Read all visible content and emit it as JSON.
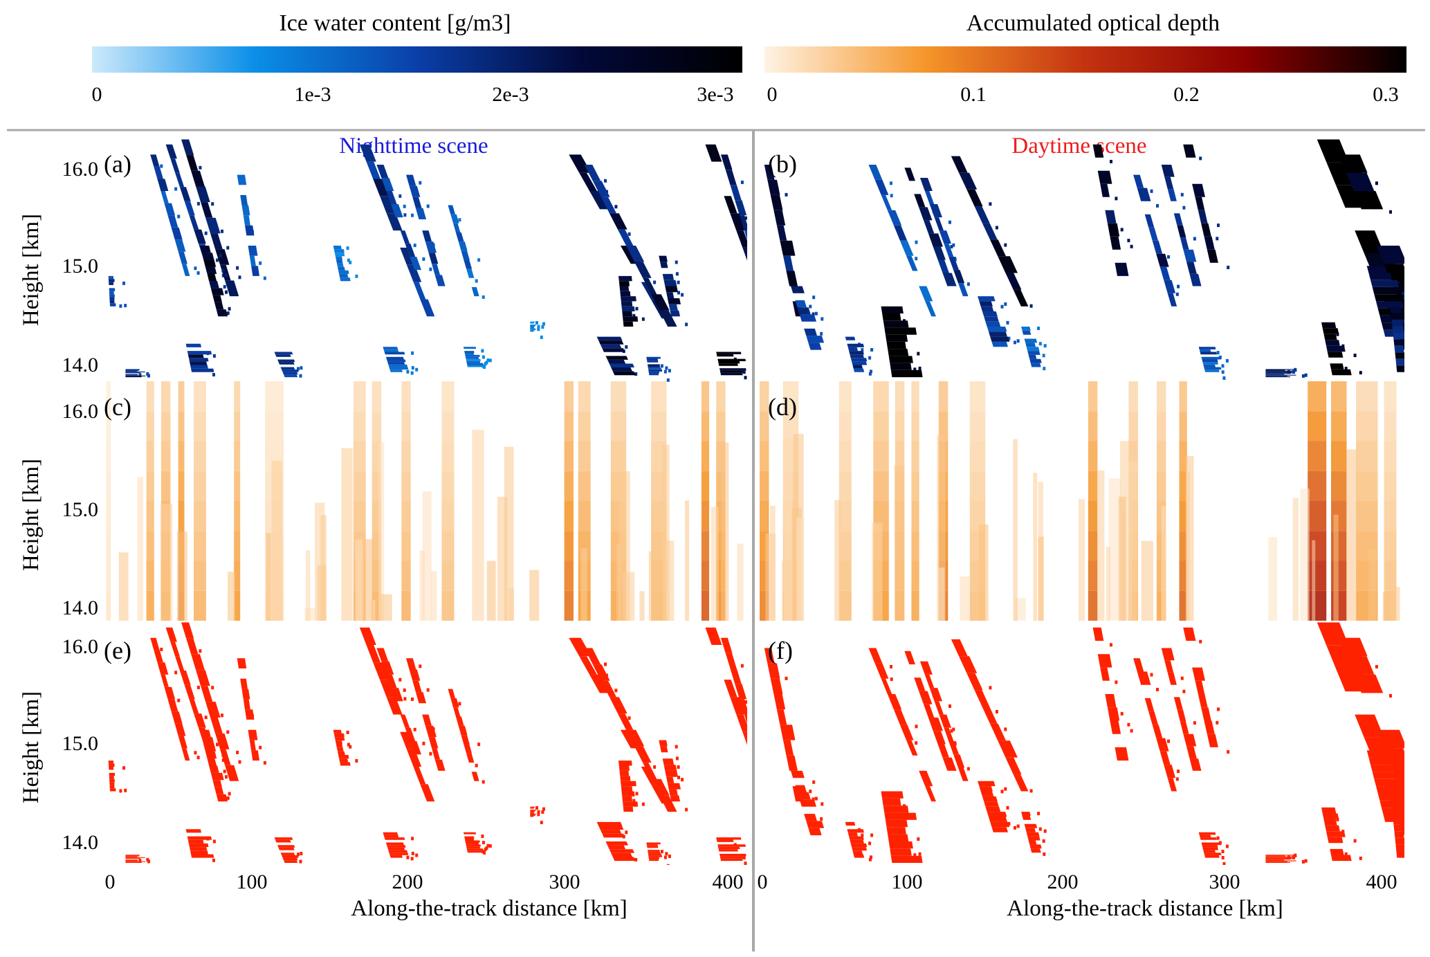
{
  "chart_data": {
    "type": "heatmap",
    "colorbars": [
      {
        "title": "Ice water content [g/m3]",
        "ticks": [
          "0",
          "1e-3",
          "2e-3",
          "3e-3"
        ],
        "range": [
          0,
          0.003
        ],
        "colors": [
          "#cde9fb",
          "#0a8fe8",
          "#0a3fa8",
          "#02093a",
          "#000000"
        ]
      },
      {
        "title": "Accumulated optical depth",
        "ticks": [
          "0",
          "0.1",
          "0.2",
          "0.3"
        ],
        "range": [
          0,
          0.3
        ],
        "colors": [
          "#fff3e4",
          "#f5962a",
          "#c43210",
          "#8c0000",
          "#000000"
        ]
      }
    ],
    "scene_labels": [
      "Nighttime scene",
      "Daytime scene"
    ],
    "ylabel": "Height [km]",
    "xlabel": "Along-the-track distance [km]",
    "y_ticks": [
      "14.0",
      "15.0",
      "16.0"
    ],
    "y_tick_values": [
      14.0,
      15.0,
      16.0
    ],
    "ylim": [
      13.88,
      16.26
    ],
    "x_ticks": [
      "0",
      "100",
      "200",
      "300",
      "400"
    ],
    "x_tick_values": [
      0,
      100,
      200,
      300,
      400
    ],
    "xlim": [
      0,
      415
    ],
    "panels": [
      {
        "label": "(a)",
        "row": 0,
        "col": 0,
        "kind": "ice"
      },
      {
        "label": "(b)",
        "row": 0,
        "col": 1,
        "kind": "ice"
      },
      {
        "label": "(c)",
        "row": 1,
        "col": 0,
        "kind": "optical"
      },
      {
        "label": "(d)",
        "row": 1,
        "col": 1,
        "kind": "optical"
      },
      {
        "label": "(e)",
        "row": 2,
        "col": 0,
        "kind": "mask"
      },
      {
        "label": "(f)",
        "row": 2,
        "col": 1,
        "kind": "mask"
      }
    ],
    "mask_color": "#ff2200",
    "streaks": [
      [
        {
          "x": 30,
          "ytop": 16.1,
          "ybot": 14.9,
          "slope": 28,
          "w": 4,
          "v": 0.0015
        },
        {
          "x": 40,
          "ytop": 16.2,
          "ybot": 14.8,
          "slope": 32,
          "w": 4,
          "v": 0.002
        },
        {
          "x": 50,
          "ytop": 16.25,
          "ybot": 14.7,
          "slope": 30,
          "w": 5,
          "v": 0.0022
        },
        {
          "x": 62,
          "ytop": 15.2,
          "ybot": 14.5,
          "slope": 25,
          "w": 6,
          "v": 0.0024
        },
        {
          "x": 86,
          "ytop": 15.9,
          "ybot": 14.9,
          "slope": 15,
          "w": 4,
          "v": 0.0014
        },
        {
          "x": 52,
          "ytop": 14.3,
          "ybot": 13.95,
          "slope": 20,
          "w": 12,
          "v": 0.002
        },
        {
          "x": 110,
          "ytop": 14.15,
          "ybot": 13.9,
          "slope": 40,
          "w": 10,
          "v": 0.0016
        },
        {
          "x": 3,
          "ytop": 14.9,
          "ybot": 14.6,
          "slope": 5,
          "w": 3,
          "v": 0.0016
        },
        {
          "x": 14,
          "ytop": 13.98,
          "ybot": 13.9,
          "slope": 0,
          "w": 10,
          "v": 0.0018
        },
        {
          "x": 148,
          "ytop": 15.2,
          "ybot": 14.85,
          "slope": 20,
          "w": 5,
          "v": 0.001
        },
        {
          "x": 165,
          "ytop": 16.2,
          "ybot": 14.5,
          "slope": 38,
          "w": 5,
          "v": 0.0018
        },
        {
          "x": 176,
          "ytop": 16.0,
          "ybot": 14.7,
          "slope": 35,
          "w": 4,
          "v": 0.0014
        },
        {
          "x": 195,
          "ytop": 15.9,
          "ybot": 14.8,
          "slope": 28,
          "w": 4,
          "v": 0.0015
        },
        {
          "x": 222,
          "ytop": 15.6,
          "ybot": 14.7,
          "slope": 28,
          "w": 4,
          "v": 0.0012
        },
        {
          "x": 180,
          "ytop": 14.2,
          "ybot": 13.95,
          "slope": 30,
          "w": 10,
          "v": 0.0012
        },
        {
          "x": 232,
          "ytop": 14.2,
          "ybot": 14.0,
          "slope": 20,
          "w": 8,
          "v": 0.001
        },
        {
          "x": 275,
          "ytop": 14.45,
          "ybot": 14.35,
          "slope": 0,
          "w": 3,
          "v": 0.001
        },
        {
          "x": 300,
          "ytop": 16.1,
          "ybot": 14.3,
          "slope": 55,
          "w": 6,
          "v": 0.0024
        },
        {
          "x": 310,
          "ytop": 16.0,
          "ybot": 14.4,
          "slope": 50,
          "w": 5,
          "v": 0.002
        },
        {
          "x": 332,
          "ytop": 14.9,
          "ybot": 14.4,
          "slope": 10,
          "w": 8,
          "v": 0.0024
        },
        {
          "x": 318,
          "ytop": 14.3,
          "ybot": 13.92,
          "slope": 45,
          "w": 14,
          "v": 0.0022
        },
        {
          "x": 358,
          "ytop": 15.1,
          "ybot": 14.5,
          "slope": 20,
          "w": 6,
          "v": 0.002
        },
        {
          "x": 388,
          "ytop": 16.2,
          "ybot": 14.5,
          "slope": 35,
          "w": 6,
          "v": 0.0024
        },
        {
          "x": 398,
          "ytop": 16.1,
          "ybot": 14.6,
          "slope": 30,
          "w": 4,
          "v": 0.0018
        },
        {
          "x": 395,
          "ytop": 14.15,
          "ybot": 13.92,
          "slope": 20,
          "w": 14,
          "v": 0.0026
        },
        {
          "x": 350,
          "ytop": 14.1,
          "ybot": 13.92,
          "slope": 15,
          "w": 8,
          "v": 0.0016
        }
      ],
      [
        {
          "x": 3,
          "ytop": 16.0,
          "ybot": 14.5,
          "slope": 20,
          "w": 6,
          "v": 0.0022
        },
        {
          "x": 20,
          "ytop": 14.8,
          "ybot": 14.1,
          "slope": 30,
          "w": 8,
          "v": 0.0016
        },
        {
          "x": 55,
          "ytop": 14.3,
          "ybot": 13.95,
          "slope": 25,
          "w": 8,
          "v": 0.0016
        },
        {
          "x": 70,
          "ytop": 16.0,
          "ybot": 14.5,
          "slope": 40,
          "w": 4,
          "v": 0.0014
        },
        {
          "x": 78,
          "ytop": 14.6,
          "ybot": 13.9,
          "slope": 15,
          "w": 16,
          "v": 0.0028
        },
        {
          "x": 90,
          "ytop": 16.1,
          "ybot": 14.8,
          "slope": 35,
          "w": 5,
          "v": 0.002
        },
        {
          "x": 100,
          "ytop": 16.0,
          "ybot": 14.7,
          "slope": 35,
          "w": 4,
          "v": 0.0016
        },
        {
          "x": 118,
          "ytop": 16.25,
          "ybot": 14.6,
          "slope": 45,
          "w": 6,
          "v": 0.0024
        },
        {
          "x": 140,
          "ytop": 14.7,
          "ybot": 14.2,
          "slope": 30,
          "w": 10,
          "v": 0.0016
        },
        {
          "x": 168,
          "ytop": 14.4,
          "ybot": 14.0,
          "slope": 25,
          "w": 6,
          "v": 0.0012
        },
        {
          "x": 214,
          "ytop": 16.2,
          "ybot": 14.9,
          "slope": 18,
          "w": 6,
          "v": 0.0026
        },
        {
          "x": 240,
          "ytop": 15.9,
          "ybot": 14.6,
          "slope": 28,
          "w": 5,
          "v": 0.0018
        },
        {
          "x": 258,
          "ytop": 16.0,
          "ybot": 14.8,
          "slope": 25,
          "w": 5,
          "v": 0.0018
        },
        {
          "x": 272,
          "ytop": 16.2,
          "ybot": 14.9,
          "slope": 22,
          "w": 5,
          "v": 0.0022
        },
        {
          "x": 282,
          "ytop": 14.2,
          "ybot": 13.95,
          "slope": 25,
          "w": 10,
          "v": 0.0014
        },
        {
          "x": 325,
          "ytop": 13.98,
          "ybot": 13.9,
          "slope": 0,
          "w": 16,
          "v": 0.002
        },
        {
          "x": 358,
          "ytop": 16.25,
          "ybot": 14.0,
          "slope": 40,
          "w": 16,
          "v": 0.003
        },
        {
          "x": 372,
          "ytop": 16.1,
          "ybot": 14.3,
          "slope": 40,
          "w": 12,
          "v": 0.0027
        },
        {
          "x": 390,
          "ytop": 15.0,
          "ybot": 14.3,
          "slope": 25,
          "w": 14,
          "v": 0.0024
        },
        {
          "x": 405,
          "ytop": 14.6,
          "ybot": 13.95,
          "slope": 10,
          "w": 8,
          "v": 0.0022
        },
        {
          "x": 360,
          "ytop": 14.5,
          "ybot": 13.92,
          "slope": 20,
          "w": 10,
          "v": 0.0028
        }
      ]
    ],
    "optical_columns": [
      [
        {
          "x": 3,
          "w": 3,
          "v": 0.01
        },
        {
          "x": 30,
          "w": 5,
          "v": 0.06
        },
        {
          "x": 40,
          "w": 6,
          "v": 0.07
        },
        {
          "x": 50,
          "w": 4,
          "v": 0.1
        },
        {
          "x": 62,
          "w": 8,
          "v": 0.05
        },
        {
          "x": 86,
          "w": 4,
          "v": 0.07
        },
        {
          "x": 110,
          "w": 12,
          "v": 0.02
        },
        {
          "x": 165,
          "w": 8,
          "v": 0.05
        },
        {
          "x": 176,
          "w": 6,
          "v": 0.05
        },
        {
          "x": 195,
          "w": 6,
          "v": 0.05
        },
        {
          "x": 222,
          "w": 8,
          "v": 0.04
        },
        {
          "x": 300,
          "w": 6,
          "v": 0.1
        },
        {
          "x": 310,
          "w": 8,
          "v": 0.07
        },
        {
          "x": 332,
          "w": 10,
          "v": 0.06
        },
        {
          "x": 358,
          "w": 10,
          "v": 0.05
        },
        {
          "x": 388,
          "w": 5,
          "v": 0.12
        },
        {
          "x": 398,
          "w": 6,
          "v": 0.08
        }
      ],
      [
        {
          "x": 3,
          "w": 6,
          "v": 0.09
        },
        {
          "x": 20,
          "w": 10,
          "v": 0.04
        },
        {
          "x": 55,
          "w": 8,
          "v": 0.04
        },
        {
          "x": 78,
          "w": 10,
          "v": 0.07
        },
        {
          "x": 90,
          "w": 6,
          "v": 0.06
        },
        {
          "x": 100,
          "w": 5,
          "v": 0.06
        },
        {
          "x": 118,
          "w": 6,
          "v": 0.1
        },
        {
          "x": 140,
          "w": 10,
          "v": 0.04
        },
        {
          "x": 214,
          "w": 6,
          "v": 0.11
        },
        {
          "x": 240,
          "w": 6,
          "v": 0.06
        },
        {
          "x": 258,
          "w": 6,
          "v": 0.06
        },
        {
          "x": 272,
          "w": 5,
          "v": 0.11
        },
        {
          "x": 358,
          "w": 12,
          "v": 0.18
        },
        {
          "x": 372,
          "w": 10,
          "v": 0.15
        },
        {
          "x": 390,
          "w": 14,
          "v": 0.06
        },
        {
          "x": 405,
          "w": 8,
          "v": 0.04
        }
      ]
    ]
  }
}
